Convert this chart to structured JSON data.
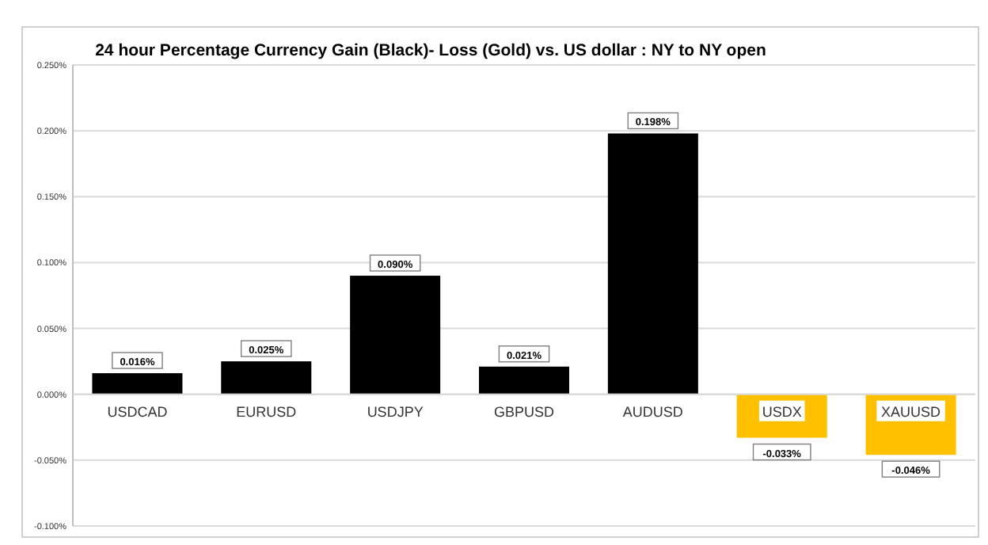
{
  "chart_data": {
    "type": "bar",
    "title": "24 hour Percentage Currency  Gain (Black)- Loss (Gold)  vs. US dollar :  NY  to NY  open",
    "categories": [
      "USDCAD",
      "EURUSD",
      "USDJPY",
      "GBPUSD",
      "AUDUSD",
      "USDX",
      "XAUUSD"
    ],
    "values": [
      0.016,
      0.025,
      0.09,
      0.021,
      0.198,
      -0.033,
      -0.046
    ],
    "colors": [
      "#000000",
      "#000000",
      "#000000",
      "#000000",
      "#000000",
      "#ffc000",
      "#ffc000"
    ],
    "value_labels": [
      "0.016%",
      "0.025%",
      "0.090%",
      "0.021%",
      "0.198%",
      "-0.033%",
      "-0.046%"
    ],
    "ylim": [
      -0.1,
      0.25
    ],
    "yticks": [
      {
        "value": -0.1,
        "label": "-0.100%"
      },
      {
        "value": -0.05,
        "label": "-0.050%"
      },
      {
        "value": 0,
        "label": "0.000%"
      },
      {
        "value": 0.05,
        "label": "0.050%"
      },
      {
        "value": 0.1,
        "label": "0.100%"
      },
      {
        "value": 0.15,
        "label": "0.150%"
      },
      {
        "value": 0.2,
        "label": "0.200%"
      },
      {
        "value": 0.25,
        "label": "0.250%"
      }
    ],
    "grid": "y"
  }
}
